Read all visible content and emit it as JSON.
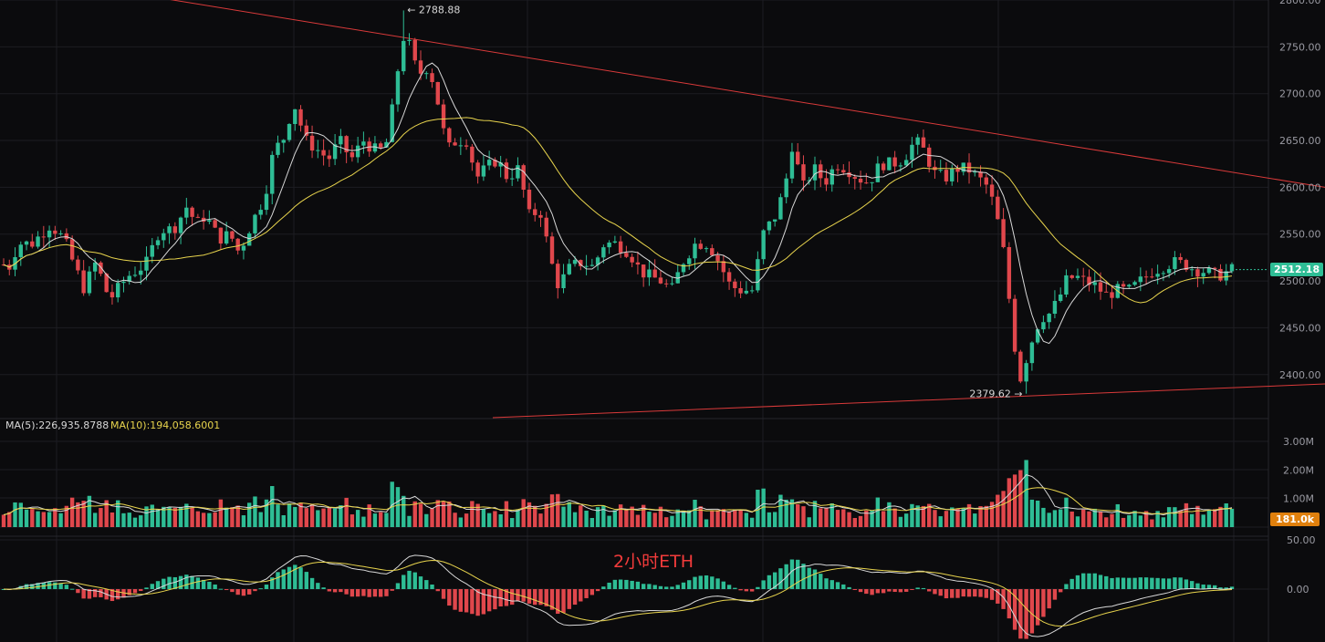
{
  "colors": {
    "background": "#0b0b0d",
    "grid": "#1d1d22",
    "up": "#2ebd95",
    "down": "#e0474c",
    "ma_white": "#d8d8d8",
    "ma_yellow": "#e8d44d",
    "trendline": "#d93a3a",
    "current_price_tag": "#2ebd95",
    "volume_tag": "#e0800d",
    "axis_text": "#9a9aa2"
  },
  "overlay_label": "2小时ETH",
  "price_axis": {
    "ticks": [
      "2800.00",
      "2750.00",
      "2700.00",
      "2650.00",
      "2600.00",
      "2550.00",
      "2500.00",
      "2450.00",
      "2400.00"
    ],
    "ylim": [
      2354,
      2800
    ],
    "current_price": "2512.18"
  },
  "annotations": {
    "high": "2788.88",
    "low": "2379.62"
  },
  "volume_panel": {
    "ma5_label": "MA(5):226,935.8788",
    "ma10_label": "MA(10):194,058.6001",
    "ticks": [
      "3.00M",
      "2.00M",
      "1.00M"
    ],
    "current_volume": "181.0k"
  },
  "macd_panel": {
    "ticks": [
      "50.00",
      "0.00"
    ]
  },
  "chart_data": {
    "type": "candlestick",
    "panels": [
      "price",
      "volume",
      "macd"
    ],
    "trendlines": [
      {
        "name": "resistance",
        "points": [
          [
            0,
            2830
          ],
          [
            1452,
            2600
          ]
        ]
      },
      {
        "name": "support",
        "points": [
          [
            540,
            2354
          ],
          [
            1452,
            2390
          ]
        ]
      }
    ],
    "candle_count": 216,
    "price_path": [
      [
        0,
        2525
      ],
      [
        8,
        2510
      ],
      [
        20,
        2540
      ],
      [
        35,
        2540
      ],
      [
        55,
        2560
      ],
      [
        70,
        2545
      ],
      [
        80,
        2520
      ],
      [
        92,
        2492
      ],
      [
        105,
        2520
      ],
      [
        120,
        2480
      ],
      [
        140,
        2505
      ],
      [
        160,
        2518
      ],
      [
        175,
        2555
      ],
      [
        190,
        2555
      ],
      [
        205,
        2580
      ],
      [
        215,
        2560
      ],
      [
        225,
        2570
      ],
      [
        240,
        2545
      ],
      [
        252,
        2550
      ],
      [
        262,
        2530
      ],
      [
        275,
        2560
      ],
      [
        290,
        2590
      ],
      [
        300,
        2640
      ],
      [
        310,
        2650
      ],
      [
        322,
        2690
      ],
      [
        335,
        2650
      ],
      [
        348,
        2640
      ],
      [
        360,
        2630
      ],
      [
        372,
        2650
      ],
      [
        385,
        2630
      ],
      [
        398,
        2650
      ],
      [
        410,
        2640
      ],
      [
        422,
        2640
      ],
      [
        433,
        2700
      ],
      [
        440,
        2760
      ],
      [
        446,
        2760
      ],
      [
        458,
        2720
      ],
      [
        470,
        2730
      ],
      [
        480,
        2690
      ],
      [
        490,
        2640
      ],
      [
        500,
        2650
      ],
      [
        512,
        2650
      ],
      [
        522,
        2610
      ],
      [
        532,
        2620
      ],
      [
        545,
        2630
      ],
      [
        556,
        2610
      ],
      [
        568,
        2620
      ],
      [
        580,
        2570
      ],
      [
        592,
        2575
      ],
      [
        604,
        2520
      ],
      [
        612,
        2495
      ],
      [
        625,
        2515
      ],
      [
        638,
        2520
      ],
      [
        650,
        2515
      ],
      [
        662,
        2540
      ],
      [
        676,
        2540
      ],
      [
        690,
        2530
      ],
      [
        702,
        2510
      ],
      [
        712,
        2505
      ],
      [
        724,
        2500
      ],
      [
        736,
        2490
      ],
      [
        748,
        2520
      ],
      [
        762,
        2540
      ],
      [
        776,
        2540
      ],
      [
        788,
        2520
      ],
      [
        800,
        2495
      ],
      [
        812,
        2490
      ],
      [
        825,
        2490
      ],
      [
        836,
        2550
      ],
      [
        850,
        2570
      ],
      [
        860,
        2600
      ],
      [
        868,
        2645
      ],
      [
        880,
        2600
      ],
      [
        892,
        2620
      ],
      [
        904,
        2605
      ],
      [
        916,
        2625
      ],
      [
        928,
        2620
      ],
      [
        940,
        2610
      ],
      [
        952,
        2605
      ],
      [
        965,
        2625
      ],
      [
        978,
        2625
      ],
      [
        990,
        2630
      ],
      [
        1003,
        2650
      ],
      [
        1012,
        2640
      ],
      [
        1024,
        2615
      ],
      [
        1036,
        2610
      ],
      [
        1048,
        2620
      ],
      [
        1060,
        2620
      ],
      [
        1072,
        2610
      ],
      [
        1083,
        2600
      ],
      [
        1092,
        2570
      ],
      [
        1100,
        2530
      ],
      [
        1106,
        2480
      ],
      [
        1112,
        2430
      ],
      [
        1118,
        2395
      ],
      [
        1124,
        2415
      ],
      [
        1132,
        2440
      ],
      [
        1140,
        2460
      ],
      [
        1150,
        2465
      ],
      [
        1160,
        2480
      ],
      [
        1168,
        2500
      ],
      [
        1178,
        2505
      ],
      [
        1188,
        2500
      ],
      [
        1200,
        2495
      ],
      [
        1212,
        2485
      ],
      [
        1225,
        2490
      ],
      [
        1238,
        2490
      ],
      [
        1250,
        2500
      ],
      [
        1262,
        2510
      ],
      [
        1274,
        2515
      ],
      [
        1286,
        2520
      ],
      [
        1298,
        2518
      ],
      [
        1310,
        2512
      ],
      [
        1322,
        2510
      ],
      [
        1334,
        2505
      ],
      [
        1350,
        2512
      ]
    ]
  }
}
